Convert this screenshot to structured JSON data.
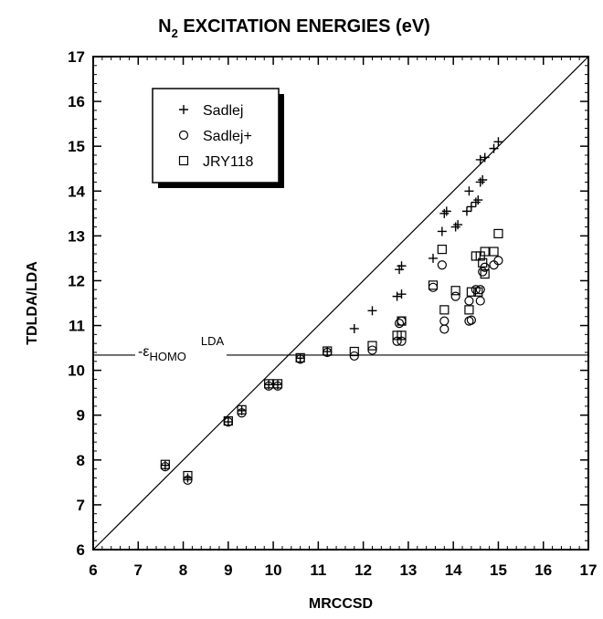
{
  "chart_data": {
    "type": "scatter",
    "title_main": "N",
    "title_sub": "2",
    "title_rest": " EXCITATION ENERGIES (eV)",
    "xlabel": "MRCCSD",
    "ylabel": "TDLDA/LDA",
    "xlim": [
      6,
      17
    ],
    "ylim": [
      6,
      17
    ],
    "xticks": [
      "6",
      "7",
      "8",
      "9",
      "10",
      "11",
      "12",
      "13",
      "14",
      "15",
      "16",
      "17"
    ],
    "yticks": [
      "6",
      "7",
      "8",
      "9",
      "10",
      "11",
      "12",
      "13",
      "14",
      "15",
      "16",
      "17"
    ],
    "legend_position": "top-left",
    "reference_lines": {
      "diagonal": "y = x",
      "horizontal_y": 10.34,
      "horizontal_label": {
        "prefix": "-ε",
        "sub": "HOMO",
        "sup": "LDA"
      }
    },
    "series": [
      {
        "name": "Sadlej",
        "marker": "plus",
        "points": [
          [
            7.6,
            7.88
          ],
          [
            8.1,
            7.6
          ],
          [
            9.0,
            8.85
          ],
          [
            9.3,
            9.1
          ],
          [
            9.9,
            9.68
          ],
          [
            10.1,
            9.68
          ],
          [
            10.6,
            10.27
          ],
          [
            11.2,
            10.42
          ],
          [
            11.8,
            10.93
          ],
          [
            12.2,
            11.33
          ],
          [
            12.75,
            11.65
          ],
          [
            12.85,
            11.7
          ],
          [
            12.8,
            12.25
          ],
          [
            12.85,
            12.33
          ],
          [
            13.55,
            12.5
          ],
          [
            13.75,
            13.1
          ],
          [
            13.8,
            13.5
          ],
          [
            13.85,
            13.55
          ],
          [
            14.05,
            13.2
          ],
          [
            14.1,
            13.25
          ],
          [
            14.3,
            13.55
          ],
          [
            14.4,
            13.65
          ],
          [
            14.35,
            14.0
          ],
          [
            14.5,
            13.75
          ],
          [
            14.55,
            13.8
          ],
          [
            14.6,
            14.2
          ],
          [
            14.65,
            14.25
          ],
          [
            14.6,
            14.7
          ],
          [
            14.7,
            14.75
          ],
          [
            14.9,
            14.95
          ],
          [
            15.0,
            15.1
          ]
        ]
      },
      {
        "name": "Sadlej+",
        "marker": "circle",
        "points": [
          [
            7.6,
            7.85
          ],
          [
            8.1,
            7.55
          ],
          [
            9.0,
            8.85
          ],
          [
            9.3,
            9.05
          ],
          [
            9.9,
            9.65
          ],
          [
            10.1,
            9.65
          ],
          [
            10.6,
            10.25
          ],
          [
            11.2,
            10.4
          ],
          [
            11.8,
            10.32
          ],
          [
            12.2,
            10.45
          ],
          [
            12.75,
            10.65
          ],
          [
            12.85,
            10.65
          ],
          [
            12.8,
            11.05
          ],
          [
            12.85,
            11.1
          ],
          [
            13.55,
            11.85
          ],
          [
            13.8,
            10.92
          ],
          [
            13.8,
            11.1
          ],
          [
            13.75,
            12.35
          ],
          [
            14.05,
            11.65
          ],
          [
            14.35,
            11.1
          ],
          [
            14.4,
            11.12
          ],
          [
            14.35,
            11.55
          ],
          [
            14.5,
            11.8
          ],
          [
            14.6,
            11.55
          ],
          [
            14.6,
            11.8
          ],
          [
            14.65,
            12.2
          ],
          [
            14.7,
            12.3
          ],
          [
            14.9,
            12.35
          ],
          [
            15.0,
            12.45
          ]
        ]
      },
      {
        "name": "JRY118",
        "marker": "square",
        "points": [
          [
            7.6,
            7.9
          ],
          [
            8.1,
            7.65
          ],
          [
            9.0,
            8.87
          ],
          [
            9.3,
            9.12
          ],
          [
            9.9,
            9.7
          ],
          [
            10.1,
            9.7
          ],
          [
            10.6,
            10.28
          ],
          [
            11.2,
            10.43
          ],
          [
            11.8,
            10.42
          ],
          [
            12.2,
            10.55
          ],
          [
            12.75,
            10.78
          ],
          [
            12.85,
            10.78
          ],
          [
            12.85,
            11.1
          ],
          [
            13.55,
            11.9
          ],
          [
            13.8,
            11.35
          ],
          [
            13.75,
            12.7
          ],
          [
            14.05,
            11.78
          ],
          [
            14.35,
            11.35
          ],
          [
            14.4,
            11.75
          ],
          [
            14.55,
            11.75
          ],
          [
            14.5,
            12.55
          ],
          [
            14.6,
            12.55
          ],
          [
            14.65,
            12.4
          ],
          [
            14.7,
            12.15
          ],
          [
            14.7,
            12.65
          ],
          [
            14.9,
            12.65
          ],
          [
            15.0,
            13.05
          ]
        ]
      }
    ]
  }
}
